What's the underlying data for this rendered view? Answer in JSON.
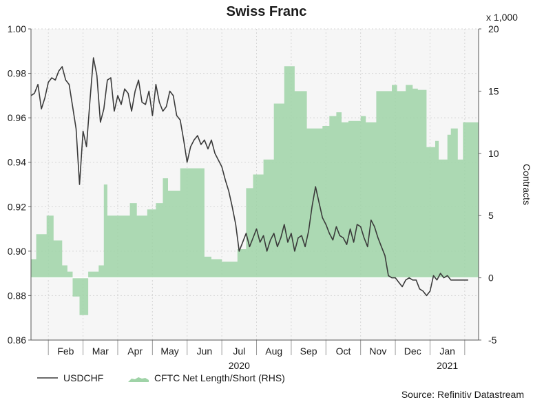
{
  "chart_data": {
    "type": "line",
    "title": "Swiss Franc",
    "xlabel": "",
    "ylabel": "",
    "y2label": "Contracts",
    "y2_multiplier_label": "x 1,000",
    "ylim": [
      0.86,
      1.0
    ],
    "y2lim": [
      -5,
      20
    ],
    "y_ticks": [
      "1.00",
      "0.98",
      "0.96",
      "0.94",
      "0.92",
      "0.90",
      "0.88",
      "0.86"
    ],
    "y2_ticks": [
      "20",
      "15",
      "10",
      "5",
      "0",
      "-5"
    ],
    "x_months": [
      {
        "label": "Feb",
        "x": 1.0
      },
      {
        "label": "Mar",
        "x": 2.0
      },
      {
        "label": "Apr",
        "x": 3.0
      },
      {
        "label": "May",
        "x": 4.0
      },
      {
        "label": "Jun",
        "x": 5.0
      },
      {
        "label": "Jul",
        "x": 6.0
      },
      {
        "label": "Aug",
        "x": 7.0
      },
      {
        "label": "Sep",
        "x": 8.0
      },
      {
        "label": "Oct",
        "x": 9.0
      },
      {
        "label": "Nov",
        "x": 10.0
      },
      {
        "label": "Dec",
        "x": 11.0
      },
      {
        "label": "Jan",
        "x": 12.0
      }
    ],
    "year_labels": [
      {
        "label": "2020",
        "x": 6.0
      },
      {
        "label": "2021",
        "x": 12.0
      }
    ],
    "xlim": [
      0,
      12.9
    ],
    "series": [
      {
        "name": "USDCHF",
        "axis": "left",
        "color": "#3a3a3a",
        "x": [
          0.0,
          0.1,
          0.2,
          0.3,
          0.4,
          0.5,
          0.6,
          0.7,
          0.8,
          0.9,
          1.0,
          1.1,
          1.2,
          1.3,
          1.4,
          1.5,
          1.6,
          1.7,
          1.8,
          1.9,
          2.0,
          2.1,
          2.2,
          2.3,
          2.4,
          2.5,
          2.6,
          2.7,
          2.8,
          2.9,
          3.0,
          3.1,
          3.2,
          3.3,
          3.4,
          3.5,
          3.6,
          3.7,
          3.8,
          3.9,
          4.0,
          4.1,
          4.2,
          4.3,
          4.4,
          4.5,
          4.6,
          4.7,
          4.8,
          4.9,
          5.0,
          5.1,
          5.2,
          5.3,
          5.4,
          5.5,
          5.6,
          5.7,
          5.8,
          5.9,
          6.0,
          6.1,
          6.2,
          6.3,
          6.4,
          6.5,
          6.6,
          6.7,
          6.8,
          6.9,
          7.0,
          7.1,
          7.2,
          7.3,
          7.4,
          7.5,
          7.6,
          7.7,
          7.8,
          7.9,
          8.0,
          8.1,
          8.2,
          8.3,
          8.4,
          8.5,
          8.6,
          8.7,
          8.8,
          8.9,
          9.0,
          9.1,
          9.2,
          9.3,
          9.4,
          9.5,
          9.6,
          9.7,
          9.8,
          9.9,
          10.0,
          10.1,
          10.2,
          10.3,
          10.4,
          10.5,
          10.6,
          10.7,
          10.8,
          10.9,
          11.0,
          11.1,
          11.2,
          11.3,
          11.4,
          11.5,
          11.6,
          11.7,
          11.8,
          11.9,
          12.0,
          12.1,
          12.2,
          12.3,
          12.4,
          12.5,
          12.6
        ],
        "values": [
          0.97,
          0.971,
          0.975,
          0.964,
          0.969,
          0.976,
          0.978,
          0.977,
          0.981,
          0.983,
          0.977,
          0.975,
          0.965,
          0.955,
          0.93,
          0.954,
          0.947,
          0.968,
          0.987,
          0.979,
          0.958,
          0.964,
          0.977,
          0.978,
          0.963,
          0.97,
          0.966,
          0.973,
          0.971,
          0.963,
          0.972,
          0.977,
          0.967,
          0.966,
          0.972,
          0.961,
          0.975,
          0.967,
          0.963,
          0.965,
          0.972,
          0.97,
          0.961,
          0.959,
          0.95,
          0.94,
          0.947,
          0.95,
          0.952,
          0.948,
          0.95,
          0.946,
          0.95,
          0.944,
          0.941,
          0.938,
          0.932,
          0.927,
          0.92,
          0.912,
          0.9,
          0.904,
          0.908,
          0.902,
          0.906,
          0.91,
          0.904,
          0.907,
          0.9,
          0.905,
          0.908,
          0.902,
          0.906,
          0.912,
          0.904,
          0.908,
          0.9,
          0.906,
          0.907,
          0.902,
          0.909,
          0.92,
          0.929,
          0.922,
          0.915,
          0.912,
          0.908,
          0.905,
          0.911,
          0.907,
          0.906,
          0.903,
          0.91,
          0.904,
          0.912,
          0.911,
          0.906,
          0.902,
          0.914,
          0.911,
          0.906,
          0.902,
          0.898,
          0.889,
          0.888,
          0.888,
          0.886,
          0.884,
          0.887,
          0.888,
          0.887,
          0.887,
          0.883,
          0.882,
          0.88,
          0.882,
          0.889,
          0.887,
          0.89,
          0.888,
          0.889,
          0.887,
          0.887,
          0.887,
          0.887,
          0.887,
          0.887
        ]
      },
      {
        "name": "CFTC Net Length/Short (RHS)",
        "axis": "right",
        "color": "#9fd3a7",
        "type": "step-area",
        "x": [
          0.0,
          0.15,
          0.45,
          0.65,
          0.9,
          1.05,
          1.2,
          1.4,
          1.65,
          1.95,
          2.1,
          2.2,
          2.65,
          2.85,
          3.05,
          3.2,
          3.35,
          3.6,
          3.8,
          3.95,
          4.3,
          5.0,
          5.2,
          5.5,
          5.95,
          6.2,
          6.4,
          6.7,
          7.0,
          7.3,
          7.6,
          7.95,
          8.1,
          8.4,
          8.6,
          8.8,
          8.95,
          9.15,
          9.5,
          9.65,
          9.95,
          10.4,
          10.55,
          10.8,
          11.0,
          11.15,
          11.4,
          11.65,
          11.75,
          12.0,
          12.1,
          12.3,
          12.45,
          12.9
        ],
        "values": [
          1.5,
          3.5,
          5,
          3,
          1,
          0.5,
          -1.5,
          -3,
          0.5,
          1,
          7.5,
          5,
          5,
          6,
          5,
          5,
          5.5,
          6,
          8,
          7,
          8.8,
          1.7,
          1.5,
          1.3,
          2.3,
          7.2,
          8.3,
          9.5,
          14,
          17,
          15,
          12,
          12,
          12.2,
          13,
          13.3,
          12.5,
          12.6,
          13,
          12.5,
          15,
          15.5,
          15,
          15.5,
          15.2,
          15.1,
          10.5,
          11,
          9.5,
          11.5,
          12,
          9.5,
          12.5,
          9.5
        ]
      }
    ],
    "legend": [
      {
        "label": "USDCHF",
        "kind": "line"
      },
      {
        "label": "CFTC Net Length/Short (RHS)",
        "kind": "area"
      }
    ],
    "source": "Source: Refinitiv Datastream",
    "grid": true,
    "plot_background": "#f6f6f6"
  }
}
